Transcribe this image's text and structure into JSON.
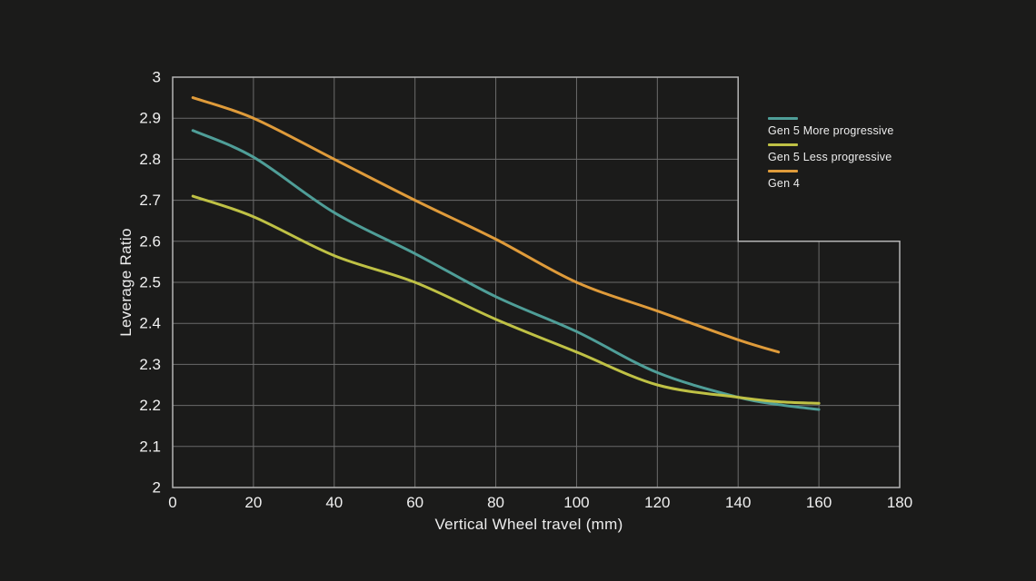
{
  "chart_data": {
    "type": "line",
    "title": "",
    "xlabel": "Vertical Wheel travel (mm)",
    "ylabel": "Leverage Ratio",
    "xlim": [
      0,
      180
    ],
    "ylim": [
      2,
      3
    ],
    "x_ticks": [
      0,
      20,
      40,
      60,
      80,
      100,
      120,
      140,
      160,
      180
    ],
    "y_ticks": [
      2,
      2.1,
      2.2,
      2.3,
      2.4,
      2.5,
      2.6,
      2.7,
      2.8,
      2.9,
      3
    ],
    "grid": "on",
    "legend_position": "upper-right",
    "plot_step": {
      "x": 140,
      "y": 2.6
    },
    "series": [
      {
        "name": "Gen 5 More progressive",
        "color": "#4f9e98",
        "x": [
          5,
          20,
          40,
          60,
          80,
          100,
          120,
          140,
          150,
          160
        ],
        "y": [
          2.87,
          2.805,
          2.67,
          2.57,
          2.465,
          2.38,
          2.28,
          2.22,
          2.202,
          2.19
        ]
      },
      {
        "name": "Gen 5 Less progressive",
        "color": "#bfc145",
        "x": [
          5,
          20,
          40,
          60,
          80,
          100,
          120,
          140,
          150,
          160
        ],
        "y": [
          2.71,
          2.66,
          2.565,
          2.5,
          2.41,
          2.33,
          2.25,
          2.22,
          2.209,
          2.205
        ]
      },
      {
        "name": "Gen 4",
        "color": "#df9b3a",
        "x": [
          5,
          20,
          40,
          60,
          80,
          100,
          120,
          140,
          150
        ],
        "y": [
          2.95,
          2.9,
          2.8,
          2.7,
          2.605,
          2.5,
          2.43,
          2.36,
          2.33
        ]
      }
    ]
  },
  "colors": {
    "background": "#1b1b1a",
    "grid": "#6b6b6b",
    "border": "#b4b4b4",
    "text": "#f0f0f0"
  }
}
